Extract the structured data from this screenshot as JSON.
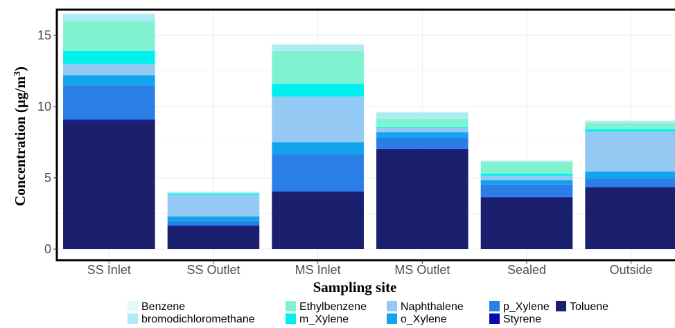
{
  "chart_data": {
    "type": "bar",
    "stacked": true,
    "xlabel": "Sampling site",
    "ylabel_main": "Concentration (µg/m",
    "ylabel_sup": "3",
    "ylabel_close": ")",
    "ylim": [
      0,
      16.8
    ],
    "yticks": [
      0,
      5,
      10,
      15
    ],
    "grid": true,
    "legend_position": "bottom",
    "categories": [
      "SS Inlet",
      "SS Outlet",
      "MS Inlet",
      "MS Outlet",
      "Sealed",
      "Outside"
    ],
    "series": [
      {
        "name": "Toluene",
        "color": "#1a1f6e",
        "values": [
          9.0,
          1.6,
          4.0,
          7.0,
          3.6,
          4.3
        ]
      },
      {
        "name": "Styrene",
        "color": "#0a0ab0",
        "values": [
          0.1,
          0.05,
          0.05,
          0.05,
          0.05,
          0.05
        ]
      },
      {
        "name": "p_Xylene",
        "color": "#2a7fe6",
        "values": [
          2.4,
          0.3,
          2.6,
          0.8,
          0.9,
          0.6
        ]
      },
      {
        "name": "o_Xylene",
        "color": "#12a4ee",
        "values": [
          0.7,
          0.35,
          0.85,
          0.35,
          0.3,
          0.5
        ]
      },
      {
        "name": "Naphthalene",
        "color": "#93c9f2",
        "values": [
          0.8,
          1.5,
          3.2,
          0.3,
          0.3,
          2.8
        ]
      },
      {
        "name": "m_Xylene",
        "color": "#00f0f0",
        "values": [
          0.9,
          0.1,
          0.9,
          0.05,
          0.15,
          0.15
        ]
      },
      {
        "name": "Ethylbenzene",
        "color": "#7ff3cf",
        "values": [
          2.1,
          0.05,
          2.3,
          0.6,
          0.8,
          0.45
        ]
      },
      {
        "name": "bromodichloromethane",
        "color": "#b0eaf2",
        "values": [
          0.5,
          0.05,
          0.45,
          0.45,
          0.1,
          0.15
        ]
      },
      {
        "name": "Benzene",
        "color": "#e0fbfc",
        "values": [
          0.05,
          0.05,
          0.05,
          0.05,
          0.05,
          0.05
        ]
      }
    ],
    "legend_rows": [
      [
        "Benzene",
        "Ethylbenzene",
        "Naphthalene",
        "p_Xylene",
        "Toluene"
      ],
      [
        "bromodichloromethane",
        "m_Xylene",
        "o_Xylene",
        "Styrene"
      ]
    ]
  }
}
